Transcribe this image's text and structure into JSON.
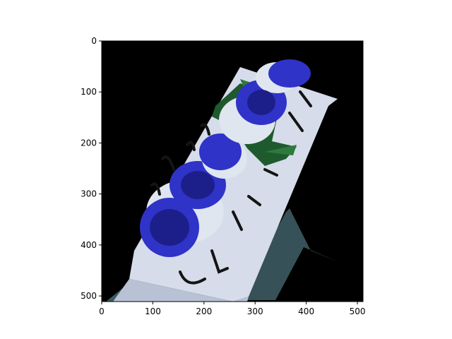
{
  "image_panel": {
    "description_icon": "photo-caprese-plate-icon",
    "background_color": "#000000",
    "x_axis": {
      "range": [
        0,
        511
      ],
      "ticks": [
        0,
        100,
        200,
        300,
        400,
        500
      ]
    },
    "y_axis": {
      "range": [
        511,
        0
      ],
      "inverted": true,
      "ticks": [
        0,
        100,
        200,
        300,
        400,
        500
      ]
    }
  },
  "colors": {
    "tomato_blue": "#2f33c8",
    "tomato_dark": "#1c1f8a",
    "mozzarella": "#dfe6ef",
    "plate": "#d6dcea",
    "basil": "#1f5a2e",
    "glaze": "#141414",
    "table": "#3f5f66"
  }
}
